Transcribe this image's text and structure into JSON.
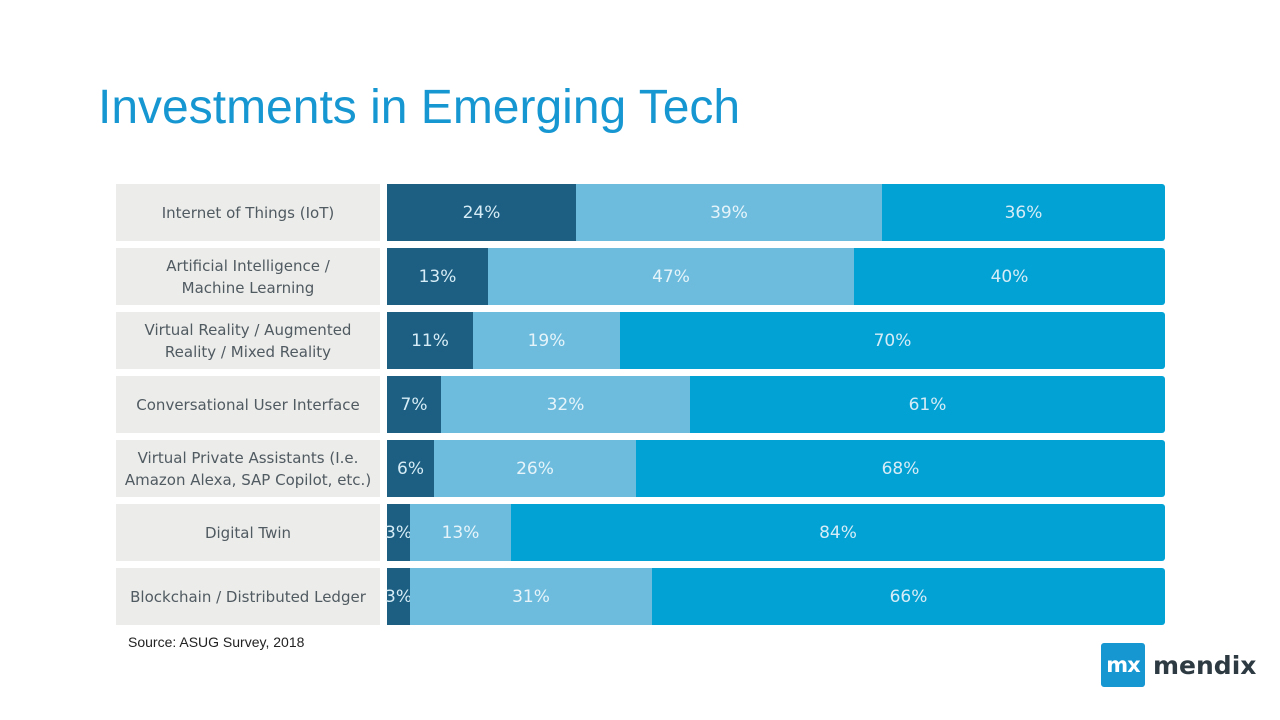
{
  "title": "Investments in Emerging Tech",
  "source": "Source: ASUG Survey, 2018",
  "logo": {
    "mark": "mx",
    "wordmark": "mendix"
  },
  "colors": {
    "segment_1": "#1c5f82",
    "segment_2": "#6dbcde",
    "segment_3": "#03a2d5",
    "label_bg": "#ececea",
    "title": "#1797d2"
  },
  "chart_data": {
    "type": "bar",
    "orientation": "horizontal",
    "stacked": true,
    "normalized": true,
    "categories": [
      "Internet of Things (IoT)",
      "Artificial Intelligence /\nMachine Learning",
      "Virtual Reality / Augmented\nReality / Mixed Reality",
      "Conversational User Interface",
      "Virtual Private Assistants (I.e.\nAmazon Alexa, SAP Copilot, etc.)",
      "Digital Twin",
      "Blockchain / Distributed Ledger"
    ],
    "series": [
      {
        "values": [
          24,
          13,
          11,
          7,
          6,
          3,
          3
        ],
        "labels": [
          "24%",
          "13%",
          "11%",
          "7%",
          "6%",
          "3%",
          "3%"
        ]
      },
      {
        "values": [
          39,
          47,
          19,
          32,
          26,
          13,
          31
        ],
        "labels": [
          "39%",
          "47%",
          "19%",
          "32%",
          "26%",
          "13%",
          "31%"
        ]
      },
      {
        "values": [
          36,
          40,
          70,
          61,
          68,
          84,
          66
        ],
        "labels": [
          "36%",
          "40%",
          "70%",
          "61%",
          "68%",
          "84%",
          "66%"
        ]
      }
    ],
    "legend": "none",
    "grid": false
  }
}
